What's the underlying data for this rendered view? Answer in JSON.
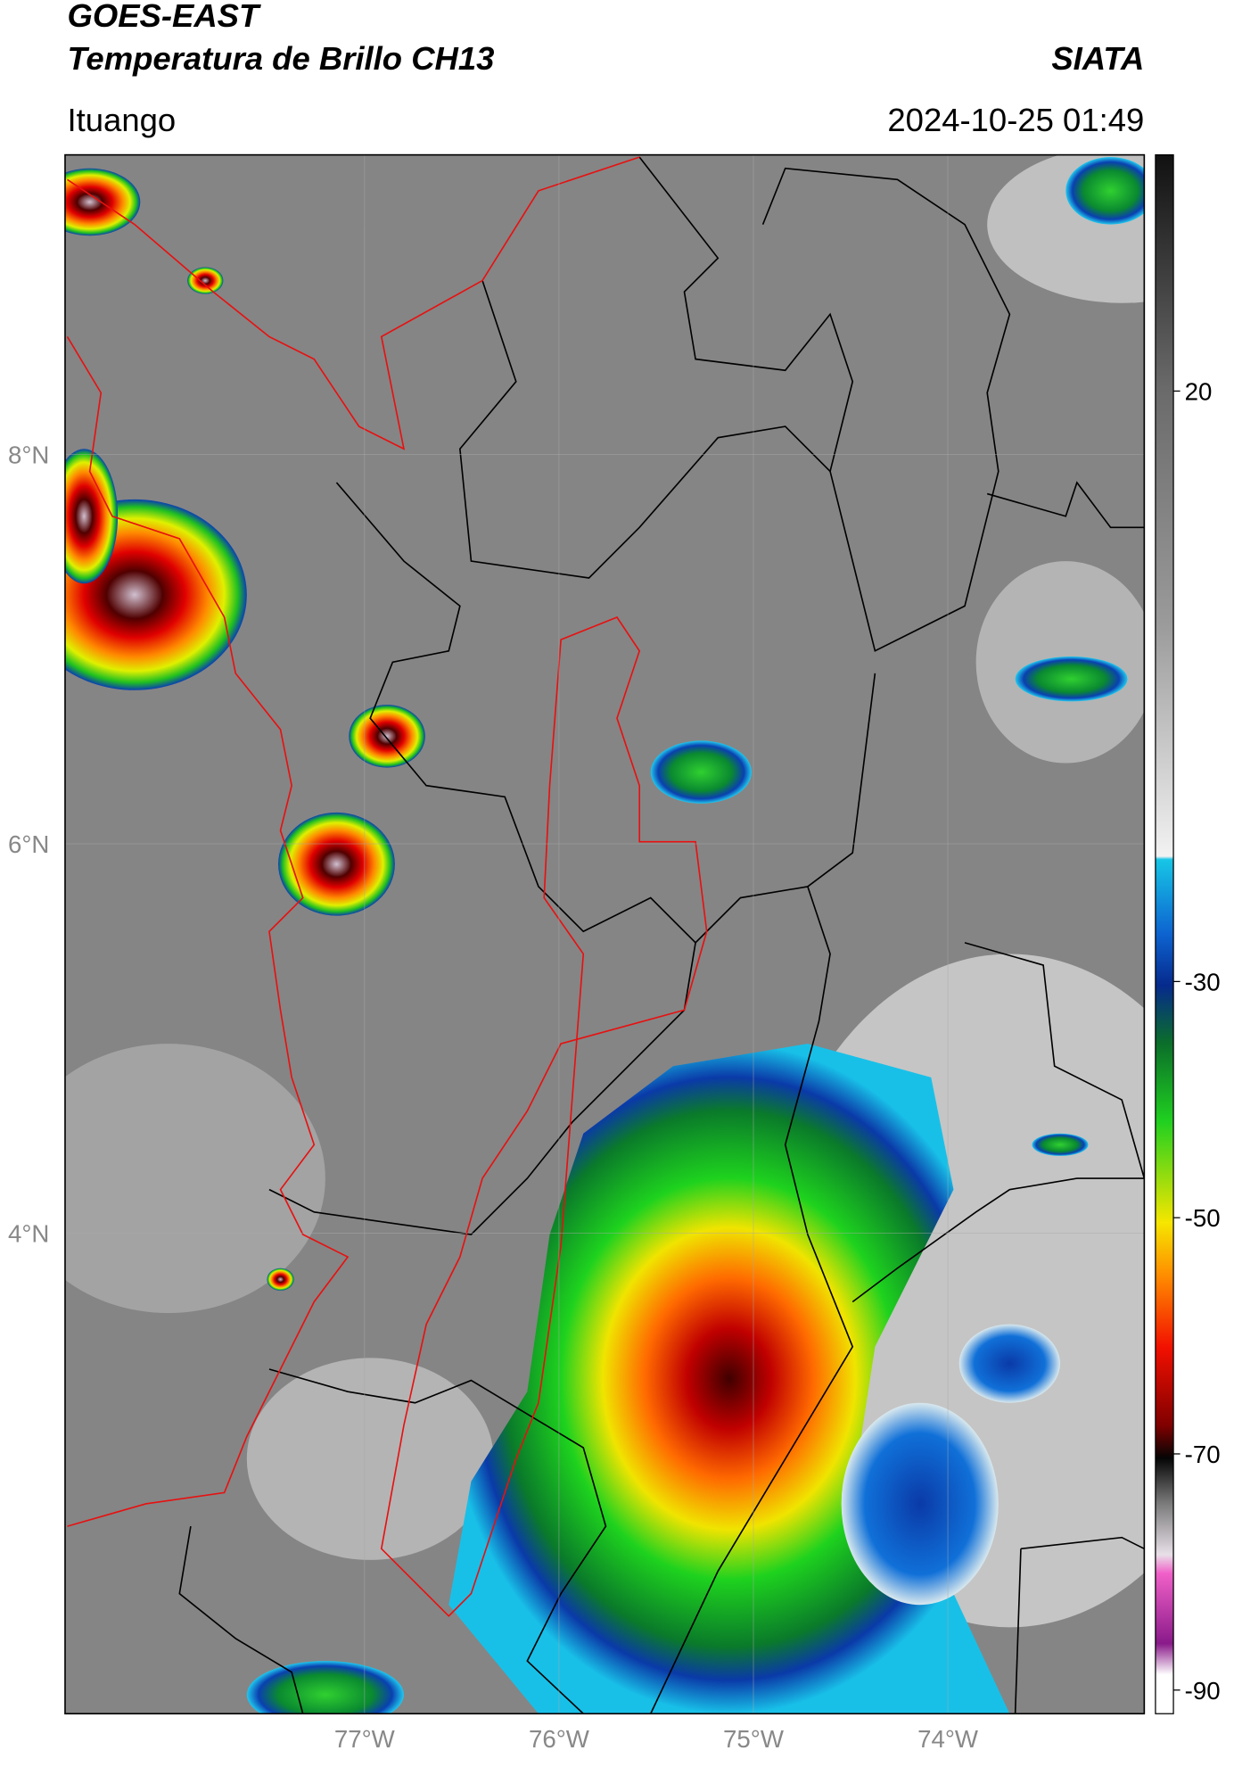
{
  "map": {
    "title": "GOES-EAST",
    "subtitle": "Temperatura de Brillo CH13",
    "source": "SIATA",
    "location": "Ituango",
    "datetime": "2024-10-25 01:49",
    "xlim": [
      -78.54,
      -72.99
    ],
    "ylim": [
      1.53,
      9.54
    ],
    "xticks": [
      {
        "value": -77,
        "label": "77°W"
      },
      {
        "value": -76,
        "label": "76°W"
      },
      {
        "value": -75,
        "label": "75°W"
      },
      {
        "value": -74,
        "label": "74°W"
      }
    ],
    "yticks": [
      {
        "value": 8,
        "label": "8°N"
      },
      {
        "value": 6,
        "label": "6°N"
      },
      {
        "value": 4,
        "label": "4°N"
      }
    ],
    "colorbar": {
      "lim": [
        -92,
        40
      ],
      "ticks": [
        20,
        -30,
        -50,
        -70,
        -90
      ]
    }
  }
}
